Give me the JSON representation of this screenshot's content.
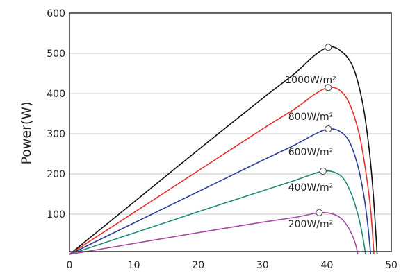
{
  "chart_data": {
    "type": "line",
    "title": "",
    "xlabel": "",
    "ylabel": "Power(W)",
    "xlim": [
      0,
      50
    ],
    "ylim": [
      0,
      600
    ],
    "xticks": [
      0,
      10,
      20,
      30,
      40,
      50
    ],
    "yticks": [
      100,
      200,
      300,
      400,
      500,
      600
    ],
    "grid": "horizontal",
    "series": [
      {
        "name": "1000W/m²",
        "color": "#111111",
        "points": [
          [
            0,
            0
          ],
          [
            10,
            130
          ],
          [
            20,
            260
          ],
          [
            30,
            388
          ],
          [
            35,
            450
          ],
          [
            38,
            494
          ],
          [
            40.2,
            515
          ],
          [
            42,
            508
          ],
          [
            44,
            468
          ],
          [
            45.5,
            380
          ],
          [
            46.5,
            270
          ],
          [
            47.2,
            150
          ],
          [
            47.8,
            0
          ]
        ],
        "mpp": [
          40.2,
          515
        ]
      },
      {
        "name": "800W/m²",
        "color": "#e8302a",
        "points": [
          [
            0,
            0
          ],
          [
            10,
            104
          ],
          [
            20,
            208
          ],
          [
            30,
            312
          ],
          [
            35,
            362
          ],
          [
            38,
            397
          ],
          [
            40.2,
            415
          ],
          [
            42,
            408
          ],
          [
            43.5,
            375
          ],
          [
            45,
            300
          ],
          [
            46,
            210
          ],
          [
            46.8,
            110
          ],
          [
            47.3,
            0
          ]
        ],
        "mpp": [
          40.2,
          415
        ]
      },
      {
        "name": "600W/m²",
        "color": "#2c3e9c",
        "points": [
          [
            0,
            0
          ],
          [
            10,
            78
          ],
          [
            20,
            156
          ],
          [
            30,
            234
          ],
          [
            35,
            272
          ],
          [
            38,
            298
          ],
          [
            40.2,
            312
          ],
          [
            42,
            306
          ],
          [
            43.5,
            280
          ],
          [
            44.8,
            220
          ],
          [
            45.7,
            150
          ],
          [
            46.3,
            80
          ],
          [
            46.8,
            0
          ]
        ],
        "mpp": [
          40.2,
          312
        ]
      },
      {
        "name": "400W/m²",
        "color": "#1f8a7a",
        "points": [
          [
            0,
            0
          ],
          [
            10,
            53
          ],
          [
            20,
            106
          ],
          [
            30,
            158
          ],
          [
            35,
            184
          ],
          [
            37.5,
            198
          ],
          [
            39.4,
            207
          ],
          [
            41,
            205
          ],
          [
            42.5,
            190
          ],
          [
            43.8,
            150
          ],
          [
            44.8,
            100
          ],
          [
            45.5,
            50
          ],
          [
            46,
            0
          ]
        ],
        "mpp": [
          39.4,
          207
        ]
      },
      {
        "name": "200W/m²",
        "color": "#a64ca6",
        "points": [
          [
            0,
            0
          ],
          [
            10,
            27
          ],
          [
            20,
            54
          ],
          [
            30,
            80
          ],
          [
            35,
            92
          ],
          [
            37.5,
            100
          ],
          [
            38.8,
            104
          ],
          [
            40.5,
            102
          ],
          [
            42,
            92
          ],
          [
            43.2,
            70
          ],
          [
            44,
            45
          ],
          [
            44.5,
            22
          ],
          [
            44.8,
            0
          ]
        ],
        "mpp": [
          38.8,
          104
        ]
      }
    ]
  }
}
